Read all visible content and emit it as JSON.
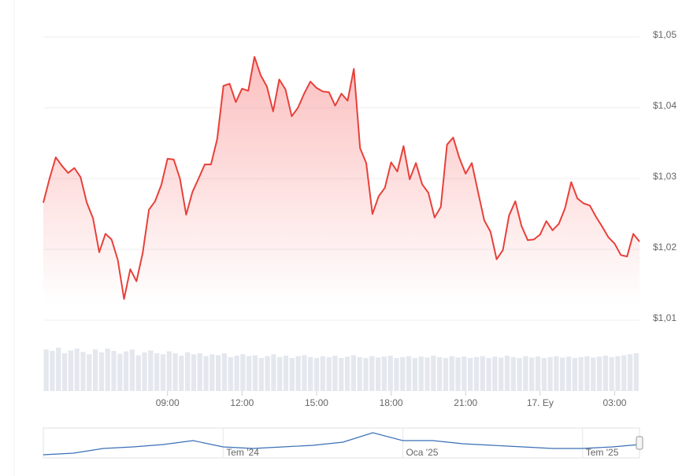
{
  "chart_data": {
    "type": "line",
    "color": "#e8403a",
    "grid": true,
    "x": [
      4,
      4.25,
      4.5,
      4.75,
      5,
      5.25,
      5.5,
      5.75,
      6,
      6.25,
      6.5,
      6.75,
      7,
      7.25,
      7.5,
      7.75,
      8,
      8.25,
      8.5,
      8.75,
      9,
      9.25,
      9.5,
      9.75,
      10,
      10.25,
      10.5,
      10.75,
      11,
      11.25,
      11.5,
      11.75,
      12,
      12.25,
      12.5,
      12.75,
      13,
      13.25,
      13.5,
      13.75,
      14,
      14.25,
      14.5,
      14.75,
      15,
      15.25,
      15.5,
      15.75,
      16,
      16.25,
      16.5,
      16.75,
      17,
      17.25,
      17.5,
      17.75,
      18,
      18.25,
      18.5,
      18.75,
      19,
      19.25,
      19.5,
      19.75,
      20,
      20.25,
      20.5,
      20.75,
      21,
      21.25,
      21.5,
      21.75,
      22,
      22.25,
      22.5,
      22.75,
      23,
      23.25,
      23.5,
      23.75,
      24,
      24.25,
      24.5,
      24.75,
      25,
      25.25,
      25.5,
      25.75,
      26,
      26.25,
      26.5,
      26.75,
      27,
      27.25,
      27.5,
      27.75,
      28
    ],
    "values": [
      1.0266,
      1.03,
      1.033,
      1.0318,
      1.0308,
      1.0315,
      1.0302,
      1.0266,
      1.0244,
      1.0196,
      1.0222,
      1.0214,
      1.0185,
      1.013,
      1.0172,
      1.0155,
      1.0195,
      1.0256,
      1.0268,
      1.0291,
      1.0328,
      1.0327,
      1.03,
      1.0249,
      1.0281,
      1.03,
      1.032,
      1.032,
      1.0356,
      1.0431,
      1.0434,
      1.0408,
      1.0427,
      1.0424,
      1.0472,
      1.0446,
      1.043,
      1.0395,
      1.044,
      1.0426,
      1.0388,
      1.04,
      1.042,
      1.0437,
      1.0428,
      1.0423,
      1.0422,
      1.0403,
      1.042,
      1.041,
      1.0455,
      1.0343,
      1.0322,
      1.025,
      1.0275,
      1.0287,
      1.0323,
      1.031,
      1.0346,
      1.0299,
      1.0322,
      1.0292,
      1.028,
      1.0245,
      1.026,
      1.0348,
      1.0358,
      1.0329,
      1.0307,
      1.0322,
      1.0281,
      1.0241,
      1.0225,
      1.0186,
      1.0199,
      1.0248,
      1.0268,
      1.0233,
      1.0213,
      1.0214,
      1.0221,
      1.024,
      1.0227,
      1.0236,
      1.0258,
      1.0295,
      1.0272,
      1.0265,
      1.0262,
      1.0246,
      1.0232,
      1.0217,
      1.0208,
      1.0192,
      1.019,
      1.0222,
      1.0211
    ],
    "xlim": [
      4,
      28
    ],
    "ylim": [
      1.01,
      1.05
    ],
    "yticks": [
      {
        "value": 1.05,
        "label": "$1,05"
      },
      {
        "value": 1.04,
        "label": "$1,04"
      },
      {
        "value": 1.03,
        "label": "$1,03"
      },
      {
        "value": 1.02,
        "label": "$1,02"
      },
      {
        "value": 1.01,
        "label": "$1,01"
      }
    ],
    "xticks": [
      {
        "value": 9,
        "label": "09:00"
      },
      {
        "value": 12,
        "label": "12:00"
      },
      {
        "value": 15,
        "label": "15:00"
      },
      {
        "value": 18,
        "label": "18:00"
      },
      {
        "value": 21,
        "label": "21:00"
      },
      {
        "value": 24,
        "label": "17. Ey"
      },
      {
        "value": 27,
        "label": "03:00"
      }
    ],
    "volume": {
      "color": "#e4e8ee",
      "ylim": [
        0,
        100
      ],
      "values": [
        88,
        85,
        92,
        80,
        86,
        90,
        83,
        78,
        88,
        82,
        90,
        85,
        79,
        84,
        88,
        76,
        82,
        86,
        80,
        78,
        84,
        80,
        75,
        82,
        78,
        80,
        74,
        78,
        76,
        80,
        72,
        75,
        78,
        74,
        76,
        70,
        74,
        78,
        72,
        75,
        70,
        74,
        76,
        72,
        70,
        74,
        72,
        75,
        70,
        73,
        76,
        72,
        70,
        74,
        71,
        73,
        75,
        70,
        72,
        74,
        70,
        73,
        71,
        75,
        72,
        70,
        74,
        71,
        73,
        70,
        72,
        74,
        70,
        73,
        71,
        75,
        72,
        70,
        74,
        71,
        73,
        70,
        72,
        74,
        71,
        73,
        70,
        72,
        74,
        71,
        73,
        75,
        72,
        74,
        76,
        78,
        80
      ]
    },
    "navigator": {
      "color": "#3a6fb5",
      "x": [
        0,
        1,
        2,
        3,
        4,
        5,
        6,
        7,
        8,
        9,
        10,
        11,
        12,
        13,
        14,
        15,
        16,
        17,
        18,
        19,
        19.9
      ],
      "values": [
        1.006,
        1.009,
        1.018,
        1.021,
        1.0255,
        1.033,
        1.021,
        1.018,
        1.021,
        1.024,
        1.03,
        1.048,
        1.033,
        1.033,
        1.027,
        1.024,
        1.021,
        1.018,
        1.018,
        1.021,
        1.0255
      ],
      "xlim": [
        0,
        19.9
      ],
      "ylim": [
        1.0,
        1.06
      ],
      "xticks": [
        {
          "value": 6,
          "label": "Tem '24"
        },
        {
          "value": 12,
          "label": "Oca '25"
        },
        {
          "value": 18,
          "label": "Tem '25"
        }
      ]
    }
  }
}
